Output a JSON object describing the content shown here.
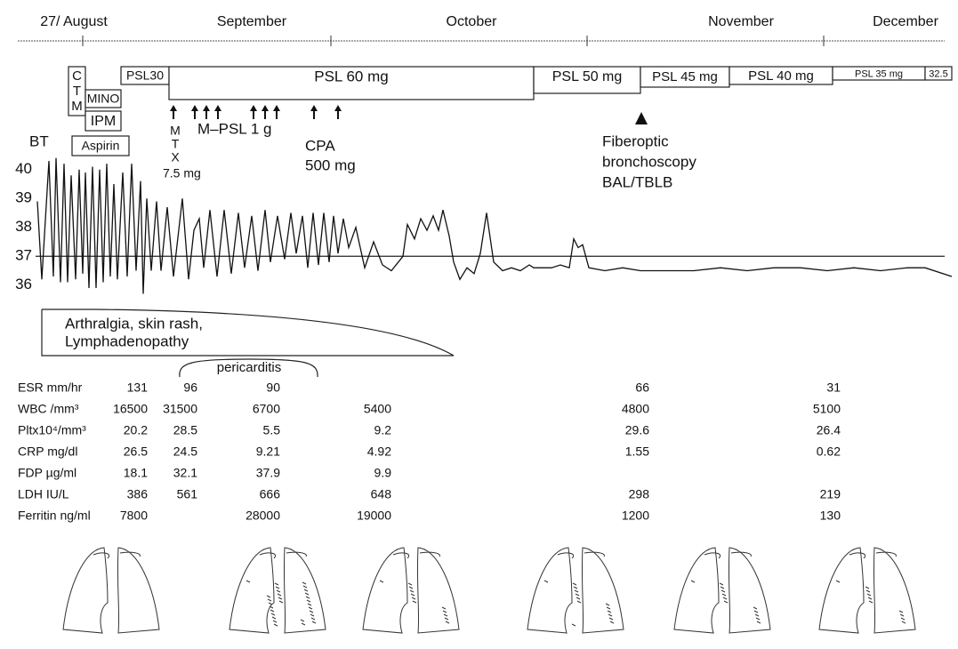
{
  "timeline": {
    "months": [
      "27/ August",
      "September",
      "October",
      "November",
      "December"
    ]
  },
  "treatments": {
    "ctm": [
      "C",
      "T",
      "M"
    ],
    "mino": "MINO",
    "ipm": "IPM",
    "aspirin": "Aspirin",
    "psl": [
      "PSL30",
      "PSL 60 mg",
      "PSL 50 mg",
      "PSL 45 mg",
      "PSL 40 mg",
      "PSL 35 mg",
      "32.5"
    ],
    "mtx": [
      "M",
      "T",
      "X"
    ],
    "mtx_dose": "7.5 mg",
    "mpsl": "M–PSL 1 g",
    "cpa": "CPA",
    "cpa_dose": "500 mg",
    "procedure": [
      "Fiberoptic",
      "bronchoscopy",
      "BAL/TBLB"
    ]
  },
  "chart_data": {
    "type": "line",
    "ylabel": "BT",
    "x": [
      -5.1,
      -4.6,
      -3.8,
      -3.3,
      -3.0,
      -2.5,
      -2.1,
      -1.7,
      -1.3,
      -0.8,
      -0.4,
      0,
      0.3,
      0.7,
      1.1,
      1.5,
      1.9,
      2.3,
      2.7,
      3.1,
      3.5,
      3.9,
      4.5,
      5.0,
      5.5,
      6.0,
      6.5,
      6.8,
      7.2,
      7.7,
      8.3,
      8.8,
      9.5,
      10.2,
      11.2,
      11.9,
      12.5,
      13.1,
      13.6,
      14.3,
      15.1,
      15.9,
      16.7,
      17.5,
      18.2,
      19.0,
      19.7,
      20.5,
      21.1,
      21.9,
      22.7,
      23.4,
      24.0,
      24.7,
      25.3,
      25.9,
      26.5,
      27.1,
      27.7,
      28.2,
      28.7,
      29.3,
      29.9,
      30.7,
      31.7,
      32.7,
      33.7,
      34.7,
      36.0,
      36.5,
      37.3,
      38.0,
      38.7,
      39.4,
      40.0,
      40.5,
      41.2,
      41.7,
      42.4,
      43.2,
      44.0,
      44.7,
      45.4,
      46.2,
      47.2,
      48.2,
      49.2,
      50.2,
      50.7,
      51.7,
      52.7,
      53.7,
      54.7,
      55.2,
      55.7,
      56.2,
      56.9,
      58.7,
      60.7,
      62.7,
      65.7,
      68.7,
      71.7,
      74.7,
      77.7,
      80.7,
      83.7,
      86.7,
      89.7,
      92.7,
      94.7,
      97.7
    ],
    "series": [
      {
        "name": "BT",
        "color": "#111111",
        "values": [
          38.9,
          36.2,
          40.3,
          36.3,
          40.4,
          36.1,
          40.2,
          36.1,
          39.8,
          36.2,
          40.0,
          36.4,
          39.9,
          35.9,
          40.1,
          35.9,
          40.0,
          36.1,
          40.2,
          36.3,
          39.5,
          36.2,
          39.9,
          36.3,
          40.2,
          36.5,
          39.6,
          35.7,
          39.0,
          36.5,
          38.9,
          36.5,
          38.7,
          36.3,
          39.0,
          36.2,
          37.9,
          38.3,
          36.6,
          38.6,
          36.3,
          38.6,
          36.4,
          38.5,
          36.6,
          38.4,
          36.5,
          38.6,
          36.8,
          38.4,
          36.9,
          38.5,
          37.1,
          38.4,
          36.6,
          38.5,
          36.7,
          38.5,
          36.8,
          38.4,
          37.1,
          38.3,
          37.3,
          38.0,
          36.6,
          37.5,
          36.7,
          36.5,
          37.0,
          38.1,
          37.6,
          38.3,
          37.9,
          38.4,
          37.9,
          38.6,
          37.7,
          36.8,
          36.2,
          36.6,
          36.4,
          37.1,
          38.5,
          36.8,
          36.5,
          36.6,
          36.5,
          36.7,
          36.6,
          36.6,
          36.6,
          36.7,
          36.6,
          37.6,
          37.3,
          37.4,
          36.6,
          36.5,
          36.6,
          36.5,
          36.5,
          36.5,
          36.6,
          36.5,
          36.6,
          36.6,
          36.5,
          36.6,
          36.5,
          36.6,
          36.6,
          36.3
        ]
      }
    ],
    "xlim": [
      -5.3,
      97.7
    ],
    "ylim": [
      35.5,
      40.5
    ],
    "yticks": [
      36,
      37,
      38,
      39,
      40
    ],
    "reference_line": 37
  },
  "symptoms": {
    "lines": [
      "Arthralgia, skin rash,",
      "Lymphadenopathy"
    ],
    "pericarditis": "pericarditis"
  },
  "labs": {
    "rows": [
      [
        "ESR mm/hr",
        131,
        96,
        90,
        null,
        66,
        31
      ],
      [
        "WBC /mm³",
        16500,
        31500,
        6700,
        5400,
        4800,
        5100
      ],
      [
        "Pltx10⁴/mm³",
        20.2,
        28.5,
        5.5,
        9.2,
        29.6,
        26.4
      ],
      [
        "CRP mg/dl",
        26.5,
        24.5,
        9.21,
        4.92,
        1.55,
        0.62
      ],
      [
        "FDP µg/ml",
        18.1,
        32.1,
        37.9,
        9.9,
        null,
        null
      ],
      [
        "LDH IU/L",
        386,
        561,
        666,
        648,
        298,
        219
      ],
      [
        "Ferritin ng/ml",
        7800,
        null,
        28000,
        19000,
        1200,
        130
      ]
    ]
  }
}
